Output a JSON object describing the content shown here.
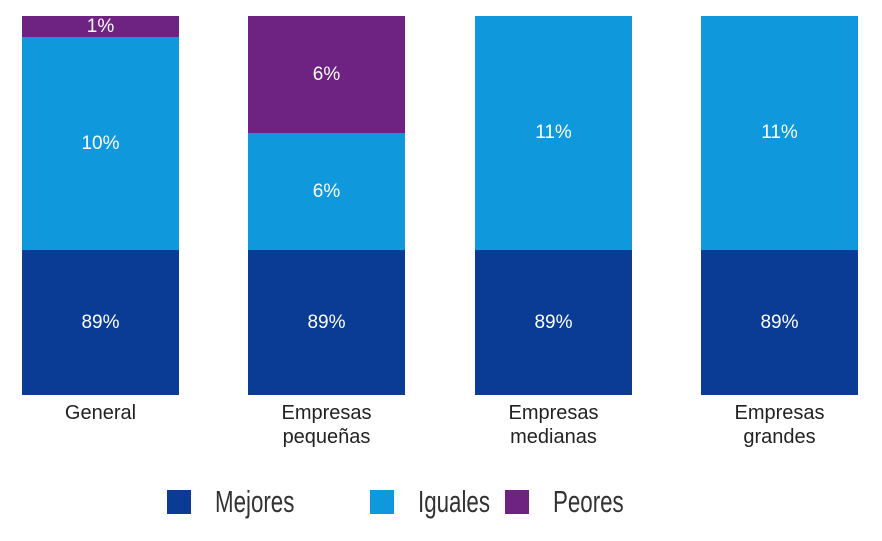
{
  "chart_data": {
    "type": "bar",
    "stacked": true,
    "categories": [
      "General",
      "Empresas\npequeñas",
      "Empresas\nmedianas",
      "Empresas\ngrandes"
    ],
    "series": [
      {
        "name": "Mejores",
        "color": "#0a3c96",
        "values": [
          89,
          89,
          89,
          89
        ],
        "labels": [
          "89%",
          "89%",
          "89%",
          "89%"
        ]
      },
      {
        "name": "Iguales",
        "color": "#0f98dc",
        "values": [
          10,
          6,
          11,
          11
        ],
        "labels": [
          "10%",
          "6%",
          "11%",
          "11%"
        ]
      },
      {
        "name": "Peores",
        "color": "#6e2382",
        "values": [
          1,
          6,
          0,
          0
        ],
        "labels": [
          "1%",
          "6%",
          "",
          ""
        ]
      }
    ],
    "legend_position": "bottom",
    "title": "",
    "xlabel": "",
    "ylabel": ""
  }
}
